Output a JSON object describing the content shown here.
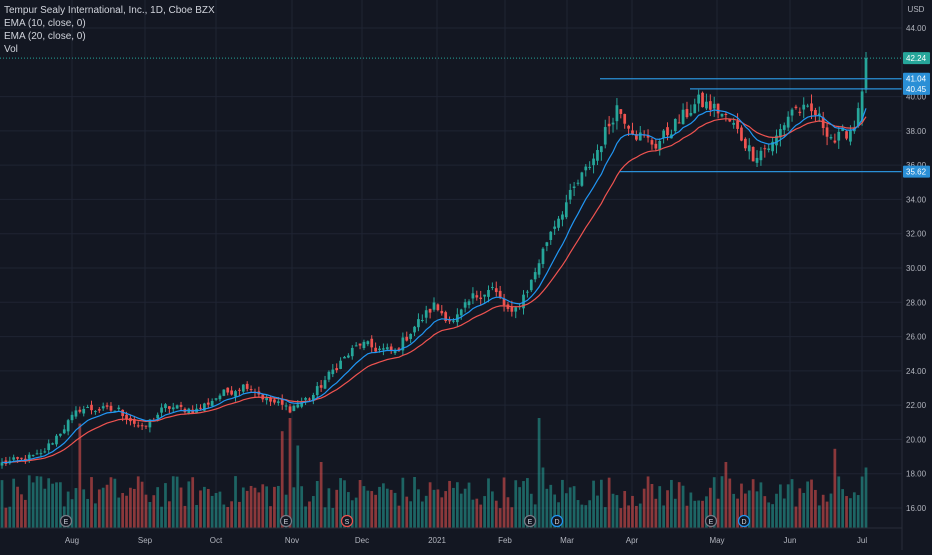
{
  "header": {
    "title": "Tempur Sealy International, Inc., 1D, Cboe BZX",
    "indicators": [
      "EMA (10, close, 0)",
      "EMA (20, close, 0)",
      "Vol"
    ],
    "currency": "USD"
  },
  "colors": {
    "background": "#131722",
    "grid": "#1f2433",
    "up": "#26a69a",
    "down": "#ef5350",
    "ema10": "#2196f3",
    "ema20": "#ef5350",
    "hline": "#2a8fd6",
    "last_price_bg": "#26a69a",
    "axis_text": "#b2b5be"
  },
  "chart_data": {
    "type": "candlestick",
    "title": "Tempur Sealy International, Inc., 1D, Cboe BZX",
    "price_range": [
      15,
      45
    ],
    "y_ticks": [
      16,
      18,
      20,
      22,
      24,
      26,
      28,
      30,
      32,
      34,
      36,
      38,
      40,
      44
    ],
    "x_ticks": [
      "Aug",
      "Sep",
      "Oct",
      "Nov",
      "Dec",
      "2021",
      "Feb",
      "Mar",
      "Apr",
      "May",
      "Jun",
      "Jul"
    ],
    "horizontal_levels": [
      {
        "price": 42.24,
        "label": "42.24",
        "kind": "last"
      },
      {
        "price": 41.04,
        "label": "41.04",
        "kind": "level"
      },
      {
        "price": 40.45,
        "label": "40.45",
        "kind": "level"
      },
      {
        "price": 35.62,
        "label": "35.62",
        "kind": "level"
      }
    ],
    "close_anchors": [
      {
        "day": 0,
        "price": 18.6
      },
      {
        "day": 10,
        "price": 19.1
      },
      {
        "day": 20,
        "price": 21.8
      },
      {
        "day": 30,
        "price": 21.7
      },
      {
        "day": 36,
        "price": 20.6
      },
      {
        "day": 42,
        "price": 21.9
      },
      {
        "day": 50,
        "price": 21.7
      },
      {
        "day": 56,
        "price": 22.6
      },
      {
        "day": 63,
        "price": 23.2
      },
      {
        "day": 68,
        "price": 22.3
      },
      {
        "day": 74,
        "price": 21.8
      },
      {
        "day": 80,
        "price": 22.6
      },
      {
        "day": 86,
        "price": 24.3
      },
      {
        "day": 92,
        "price": 25.6
      },
      {
        "day": 96,
        "price": 25.3
      },
      {
        "day": 101,
        "price": 25.1
      },
      {
        "day": 106,
        "price": 26.6
      },
      {
        "day": 111,
        "price": 27.8
      },
      {
        "day": 116,
        "price": 26.8
      },
      {
        "day": 121,
        "price": 28.3
      },
      {
        "day": 126,
        "price": 28.8
      },
      {
        "day": 131,
        "price": 27.2
      },
      {
        "day": 136,
        "price": 29.2
      },
      {
        "day": 141,
        "price": 32.2
      },
      {
        "day": 147,
        "price": 34.6
      },
      {
        "day": 152,
        "price": 36.4
      },
      {
        "day": 158,
        "price": 39.4
      },
      {
        "day": 163,
        "price": 37.8
      },
      {
        "day": 168,
        "price": 37.2
      },
      {
        "day": 174,
        "price": 38.6
      },
      {
        "day": 179,
        "price": 39.7
      },
      {
        "day": 184,
        "price": 39.2
      },
      {
        "day": 188,
        "price": 38.3
      },
      {
        "day": 193,
        "price": 36.6
      },
      {
        "day": 198,
        "price": 37.2
      },
      {
        "day": 203,
        "price": 39.3
      },
      {
        "day": 209,
        "price": 39.0
      },
      {
        "day": 214,
        "price": 37.4
      },
      {
        "day": 219,
        "price": 38.3
      },
      {
        "day": 222,
        "price": 42.24
      }
    ],
    "volume": {
      "relative": true,
      "max_bar_fraction": 1.0
    },
    "event_markers": [
      {
        "day": 16,
        "symbol": "E"
      },
      {
        "day": 73,
        "symbol": "E"
      },
      {
        "day": 88,
        "symbol": "S"
      },
      {
        "day": 134,
        "symbol": "E"
      },
      {
        "day": 142,
        "symbol": "D"
      },
      {
        "day": 179,
        "symbol": "E"
      },
      {
        "day": 188,
        "symbol": "D"
      }
    ],
    "total_days": 223
  }
}
